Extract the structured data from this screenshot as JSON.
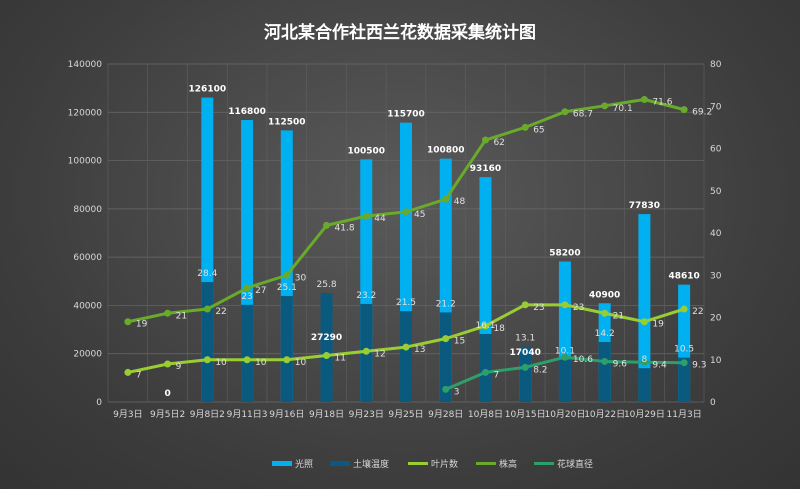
{
  "chart_data": {
    "type": "bar+line",
    "title": "河北某合作社西兰花数据采集统计图",
    "categories": [
      "9月3日",
      "9月5日2",
      "9月8日2",
      "9月11日3",
      "9月16日",
      "9月18日",
      "9月23日",
      "9月25日",
      "9月28日",
      "10月8日",
      "10月15日",
      "10月20日",
      "10月22日",
      "10月29日",
      "11月3日"
    ],
    "y_left": {
      "min": 0,
      "max": 140000,
      "ticks": [
        0,
        20000,
        40000,
        60000,
        80000,
        100000,
        120000,
        140000
      ]
    },
    "y_right": {
      "min": 0,
      "max": 80,
      "ticks": [
        0,
        10,
        20,
        30,
        40,
        50,
        60,
        70,
        80
      ]
    },
    "grid": true,
    "legend_position": "bottom",
    "series": [
      {
        "name": "光照",
        "kind": "bar",
        "axis": "left",
        "color": "#00b0f0",
        "values": [
          null,
          0,
          126100,
          116800,
          112500,
          27290,
          100500,
          115700,
          100800,
          93160,
          17040,
          58200,
          40900,
          77830,
          48610
        ]
      },
      {
        "name": "土壤温度",
        "kind": "bar",
        "axis": "right",
        "color": "#0a5a80",
        "values": [
          null,
          null,
          28.4,
          23,
          25.1,
          25.8,
          23.2,
          21.5,
          21.2,
          16.1,
          13.1,
          10.1,
          14.2,
          8,
          10.5
        ]
      },
      {
        "name": "叶片数",
        "kind": "line",
        "axis": "right",
        "color": "#9acd32",
        "values": [
          7,
          9,
          10,
          10,
          10,
          11,
          12,
          13,
          15,
          18,
          23,
          23,
          21,
          19,
          22
        ]
      },
      {
        "name": "株高",
        "kind": "line",
        "axis": "right",
        "color": "#6aaa2a",
        "values": [
          19,
          21,
          22,
          27,
          30,
          41.8,
          44,
          45,
          48,
          62,
          65,
          68.7,
          70.1,
          71.6,
          69.2
        ]
      },
      {
        "name": "花球直径",
        "kind": "line",
        "axis": "right",
        "color": "#2e9e6a",
        "values": [
          null,
          null,
          null,
          null,
          null,
          null,
          null,
          null,
          3,
          7,
          8.2,
          10.6,
          9.6,
          9.4,
          9.3
        ]
      }
    ]
  }
}
